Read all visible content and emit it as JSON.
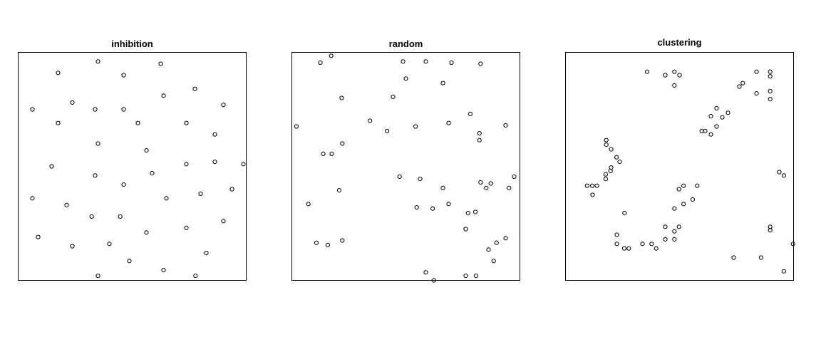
{
  "chart_data": [
    {
      "type": "scatter",
      "title": "inhibition",
      "xlabel": "",
      "ylabel": "",
      "xlim": [
        0,
        1
      ],
      "ylim": [
        0,
        1
      ],
      "axes_visible": false,
      "grid": false,
      "marker": "open-circle",
      "points": [
        [
          0.35,
          0.96
        ],
        [
          0.625,
          0.95
        ],
        [
          0.175,
          0.91
        ],
        [
          0.4625,
          0.9
        ],
        [
          0.775,
          0.84
        ],
        [
          0.6375,
          0.81
        ],
        [
          0.2375,
          0.78
        ],
        [
          0.9,
          0.77
        ],
        [
          0.0625,
          0.75
        ],
        [
          0.3375,
          0.75
        ],
        [
          0.4625,
          0.75
        ],
        [
          0.7375,
          0.69
        ],
        [
          0.175,
          0.69
        ],
        [
          0.525,
          0.69
        ],
        [
          0.8625,
          0.64
        ],
        [
          0.35,
          0.6
        ],
        [
          0.5625,
          0.57
        ],
        [
          0.8625,
          0.52
        ],
        [
          0.1469,
          0.5
        ],
        [
          0.3375,
          0.46
        ],
        [
          0.5875,
          0.47
        ],
        [
          0.7375,
          0.51
        ],
        [
          0.9875,
          0.51
        ],
        [
          0.4625,
          0.42
        ],
        [
          0.9375,
          0.4
        ],
        [
          0.0625,
          0.36
        ],
        [
          0.2125,
          0.33
        ],
        [
          0.65,
          0.36
        ],
        [
          0.8,
          0.38
        ],
        [
          0.3225,
          0.28
        ],
        [
          0.4475,
          0.28
        ],
        [
          0.9,
          0.26
        ],
        [
          0.7375,
          0.23
        ],
        [
          0.5625,
          0.21
        ],
        [
          0.0875,
          0.19
        ],
        [
          0.4,
          0.16
        ],
        [
          0.2375,
          0.15
        ],
        [
          0.825,
          0.12
        ],
        [
          0.4875,
          0.085
        ],
        [
          0.6375,
          0.045
        ],
        [
          0.35,
          0.02
        ],
        [
          0.7775,
          0.02
        ]
      ]
    },
    {
      "type": "scatter",
      "title": "random",
      "xlabel": "",
      "ylabel": "",
      "xlim": [
        0,
        1
      ],
      "ylim": [
        0,
        1
      ],
      "axes_visible": false,
      "grid": false,
      "marker": "open-circle",
      "points": [
        [
          0.1725,
          0.985
        ],
        [
          0.125,
          0.955
        ],
        [
          0.4875,
          0.96
        ],
        [
          0.5875,
          0.96
        ],
        [
          0.7,
          0.955
        ],
        [
          0.8275,
          0.95
        ],
        [
          0.5,
          0.885
        ],
        [
          0.6625,
          0.865
        ],
        [
          0.2187,
          0.8
        ],
        [
          0.4437,
          0.805
        ],
        [
          0.7825,
          0.73
        ],
        [
          0.3425,
          0.7
        ],
        [
          0.6875,
          0.69
        ],
        [
          0.9375,
          0.68
        ],
        [
          0.02,
          0.675
        ],
        [
          0.4175,
          0.655
        ],
        [
          0.5425,
          0.675
        ],
        [
          0.8225,
          0.645
        ],
        [
          0.8225,
          0.615
        ],
        [
          0.2212,
          0.6
        ],
        [
          0.1375,
          0.555
        ],
        [
          0.175,
          0.555
        ],
        [
          0.4725,
          0.455
        ],
        [
          0.5625,
          0.445
        ],
        [
          0.975,
          0.455
        ],
        [
          0.6625,
          0.405
        ],
        [
          0.8275,
          0.43
        ],
        [
          0.8725,
          0.425
        ],
        [
          0.8525,
          0.405
        ],
        [
          0.9525,
          0.405
        ],
        [
          0.2075,
          0.395
        ],
        [
          0.0725,
          0.335
        ],
        [
          0.5475,
          0.32
        ],
        [
          0.6175,
          0.315
        ],
        [
          0.6875,
          0.335
        ],
        [
          0.7725,
          0.295
        ],
        [
          0.805,
          0.3
        ],
        [
          0.7625,
          0.225
        ],
        [
          0.9375,
          0.185
        ],
        [
          0.2212,
          0.175
        ],
        [
          0.1075,
          0.165
        ],
        [
          0.1575,
          0.155
        ],
        [
          0.8975,
          0.165
        ],
        [
          0.8625,
          0.135
        ],
        [
          0.885,
          0.085
        ],
        [
          0.5875,
          0.035
        ],
        [
          0.6225,
          0.0
        ],
        [
          0.7625,
          0.02
        ],
        [
          0.8075,
          0.02
        ]
      ]
    },
    {
      "type": "scatter",
      "title": "clustering",
      "xlabel": "",
      "ylabel": "",
      "xlim": [
        0,
        1
      ],
      "ylim": [
        0,
        1
      ],
      "axes_visible": false,
      "grid": false,
      "marker": "open-circle",
      "points": [
        [
          0.3575,
          0.915
        ],
        [
          0.4775,
          0.915
        ],
        [
          0.4375,
          0.9
        ],
        [
          0.5,
          0.9
        ],
        [
          0.4775,
          0.855
        ],
        [
          0.8375,
          0.915
        ],
        [
          0.8975,
          0.915
        ],
        [
          0.8975,
          0.895
        ],
        [
          0.7775,
          0.865
        ],
        [
          0.7625,
          0.85
        ],
        [
          0.8975,
          0.83
        ],
        [
          0.8375,
          0.82
        ],
        [
          0.8975,
          0.795
        ],
        [
          0.6625,
          0.755
        ],
        [
          0.7125,
          0.735
        ],
        [
          0.6375,
          0.72
        ],
        [
          0.6875,
          0.715
        ],
        [
          0.6625,
          0.675
        ],
        [
          0.6125,
          0.655
        ],
        [
          0.5975,
          0.655
        ],
        [
          0.6375,
          0.64
        ],
        [
          0.1787,
          0.615
        ],
        [
          0.1787,
          0.595
        ],
        [
          0.2,
          0.575
        ],
        [
          0.2237,
          0.54
        ],
        [
          0.2375,
          0.52
        ],
        [
          0.2,
          0.495
        ],
        [
          0.1975,
          0.48
        ],
        [
          0.1762,
          0.465
        ],
        [
          0.1762,
          0.445
        ],
        [
          0.095,
          0.415
        ],
        [
          0.1375,
          0.415
        ],
        [
          0.1175,
          0.415
        ],
        [
          0.1187,
          0.375
        ],
        [
          0.9375,
          0.475
        ],
        [
          0.9575,
          0.46
        ],
        [
          0.5175,
          0.415
        ],
        [
          0.5775,
          0.415
        ],
        [
          0.4975,
          0.4
        ],
        [
          0.5575,
          0.355
        ],
        [
          0.5175,
          0.335
        ],
        [
          0.4775,
          0.315
        ],
        [
          0.2587,
          0.295
        ],
        [
          0.4375,
          0.235
        ],
        [
          0.4975,
          0.235
        ],
        [
          0.4775,
          0.215
        ],
        [
          0.225,
          0.2
        ],
        [
          0.4375,
          0.18
        ],
        [
          0.4775,
          0.18
        ],
        [
          0.225,
          0.16
        ],
        [
          0.3375,
          0.16
        ],
        [
          0.3775,
          0.16
        ],
        [
          0.2575,
          0.14
        ],
        [
          0.2775,
          0.14
        ],
        [
          0.3975,
          0.14
        ],
        [
          0.8975,
          0.235
        ],
        [
          0.8975,
          0.22
        ],
        [
          0.9975,
          0.16
        ],
        [
          0.7375,
          0.1
        ],
        [
          0.8575,
          0.1
        ],
        [
          0.9575,
          0.04
        ]
      ]
    }
  ]
}
